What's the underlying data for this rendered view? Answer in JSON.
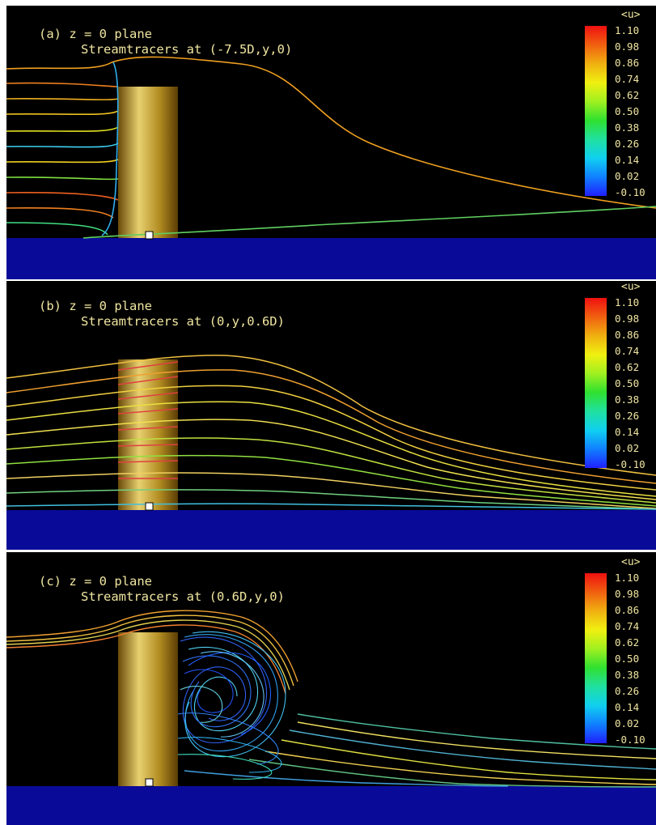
{
  "colors": {
    "background": "#000000",
    "ground": "#0a0a98",
    "cylinder": "#c8a830",
    "text": "#f0e6a0",
    "colormap": [
      "#2020ff",
      "#1080ff",
      "#10d0f0",
      "#20e0a0",
      "#30e030",
      "#a0f020",
      "#f0f010",
      "#f0b010",
      "#f06010",
      "#f01010"
    ]
  },
  "colorbar": {
    "title": "<u>",
    "ticks": [
      "1.10",
      "0.98",
      "0.86",
      "0.74",
      "0.62",
      "0.50",
      "0.38",
      "0.26",
      "0.14",
      "0.02",
      "-0.10"
    ]
  },
  "panels": [
    {
      "label": "(a) z = 0 plane",
      "subtitle": "Streamtracers at (-7.5D,y,0)"
    },
    {
      "label": "(b) z = 0 plane",
      "subtitle": "Streamtracers at (0,y,0.6D)"
    },
    {
      "label": "(c) z = 0 plane",
      "subtitle": "Streamtracers at (0.6D,y,0)"
    }
  ]
}
